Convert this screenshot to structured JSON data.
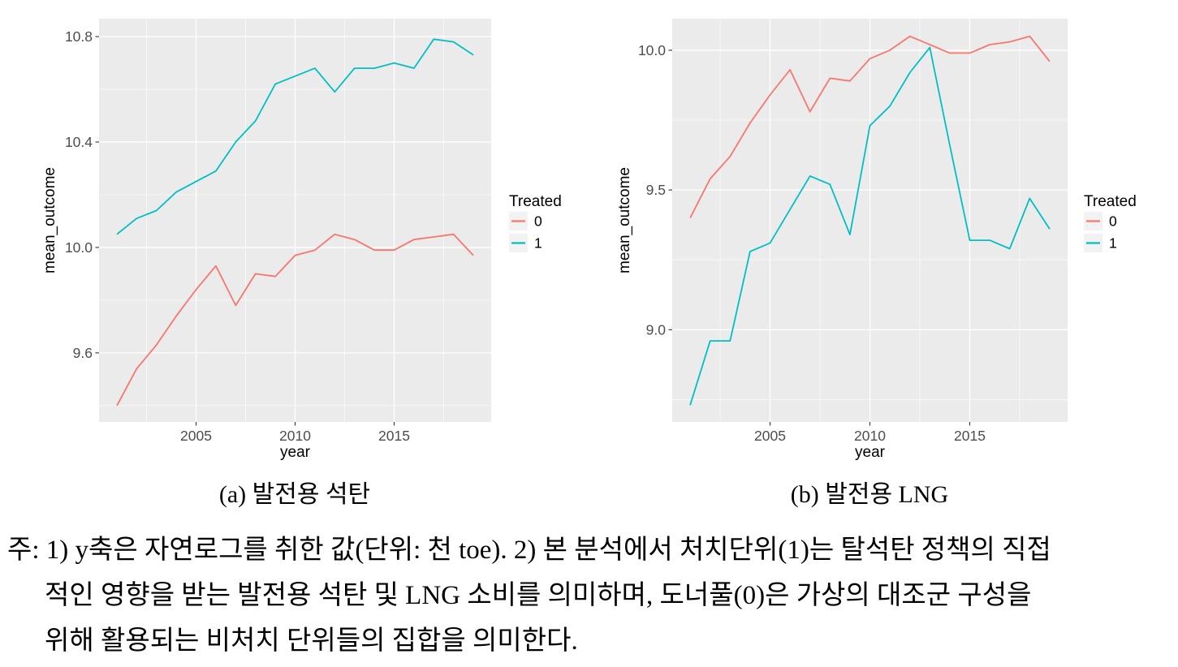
{
  "style": {
    "panel_bg": "#EBEBEB",
    "grid_color": "#FFFFFF",
    "tick_color": "#333333",
    "tick_label_color": "#4D4D4D",
    "text_color": "#000000",
    "legend_key_bg": "#F2F2F2",
    "treated0_color": "#F8766D",
    "treated1_color": "#00BFC4"
  },
  "chart_data": [
    {
      "type": "line",
      "title": "(a) 발전용 석탄",
      "xlabel": "year",
      "ylabel": "mean_outcome",
      "legend_title": "Treated",
      "legend_position": "right",
      "grid": true,
      "x": [
        2001,
        2002,
        2003,
        2004,
        2005,
        2006,
        2007,
        2008,
        2009,
        2010,
        2011,
        2012,
        2013,
        2014,
        2015,
        2016,
        2017,
        2018,
        2019
      ],
      "series": [
        {
          "name": "0",
          "color": "#F8766D",
          "values": [
            9.4,
            9.54,
            9.63,
            9.74,
            9.84,
            9.93,
            9.78,
            9.9,
            9.89,
            9.97,
            9.99,
            10.05,
            10.03,
            9.99,
            9.99,
            10.03,
            10.04,
            10.05,
            9.97
          ]
        },
        {
          "name": "1",
          "color": "#00BFC4",
          "values": [
            10.05,
            10.11,
            10.14,
            10.21,
            10.25,
            10.29,
            10.4,
            10.48,
            10.62,
            10.65,
            10.68,
            10.59,
            10.68,
            10.68,
            10.7,
            10.68,
            10.79,
            10.78,
            10.73
          ]
        }
      ],
      "x_ticks": [
        2005,
        2010,
        2015
      ],
      "x_minor_ticks": [
        2002.5,
        2007.5,
        2012.5,
        2017.5
      ],
      "y_ticks": [
        9.6,
        10.0,
        10.4,
        10.8
      ],
      "y_minor_ticks": [
        9.4,
        9.8,
        10.2,
        10.6
      ],
      "xlim": [
        2000.1,
        2019.9
      ],
      "ylim": [
        9.338,
        10.868
      ]
    },
    {
      "type": "line",
      "title": "(b) 발전용 LNG",
      "xlabel": "year",
      "ylabel": "mean_outcome",
      "legend_title": "Treated",
      "legend_position": "right",
      "grid": true,
      "x": [
        2001,
        2002,
        2003,
        2004,
        2005,
        2006,
        2007,
        2008,
        2009,
        2010,
        2011,
        2012,
        2013,
        2014,
        2015,
        2016,
        2017,
        2018,
        2019
      ],
      "series": [
        {
          "name": "0",
          "color": "#F8766D",
          "values": [
            9.4,
            9.54,
            9.62,
            9.74,
            9.84,
            9.93,
            9.78,
            9.9,
            9.89,
            9.97,
            10.0,
            10.05,
            10.02,
            9.99,
            9.99,
            10.02,
            10.03,
            10.05,
            9.96
          ]
        },
        {
          "name": "1",
          "color": "#00BFC4",
          "values": [
            8.73,
            8.96,
            8.96,
            9.28,
            9.31,
            9.43,
            9.55,
            9.52,
            9.34,
            9.73,
            9.8,
            9.92,
            10.01,
            9.66,
            9.32,
            9.32,
            9.29,
            9.47,
            9.36
          ]
        }
      ],
      "x_ticks": [
        2005,
        2010,
        2015
      ],
      "x_minor_ticks": [
        2002.5,
        2007.5,
        2012.5,
        2017.5
      ],
      "y_ticks": [
        9.0,
        9.5,
        10.0
      ],
      "y_minor_ticks": [
        8.75,
        9.25,
        9.75
      ],
      "xlim": [
        2000.1,
        2019.9
      ],
      "ylim": [
        8.67,
        10.113
      ]
    }
  ],
  "note": {
    "lines": [
      "주: 1) y축은 자연로그를 취한 값(단위: 천 toe). 2) 본 분석에서 처치단위(1)는 탈석탄 정책의 직접",
      "적인 영향을 받는 발전용 석탄 및 LNG 소비를 의미하며, 도너풀(0)은 가상의 대조군 구성을",
      "위해 활용되는 비처치 단위들의 집합을 의미한다."
    ]
  }
}
